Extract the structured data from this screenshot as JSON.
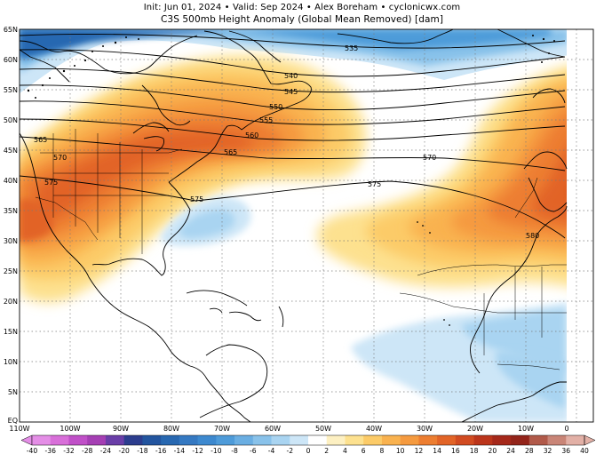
{
  "header": {
    "line1": "Init: Jun 01, 2024 • Valid: Sep 2024 • Alex Boreham • cyclonicwx.com",
    "line2": "C3S 500mb Height Anomaly (Global Mean Removed) [dam]"
  },
  "map": {
    "lat_labels": [
      "65N",
      "60N",
      "55N",
      "50N",
      "45N",
      "40N",
      "35N",
      "30N",
      "25N",
      "20N",
      "15N",
      "10N",
      "5N",
      "EQ"
    ],
    "lon_labels": [
      "110W",
      "100W",
      "90W",
      "80W",
      "70W",
      "60W",
      "50W",
      "40W",
      "30W",
      "20W",
      "10W",
      "0"
    ],
    "contour_labels": [
      "535",
      "540",
      "545",
      "550",
      "555",
      "560",
      "565",
      "570",
      "575",
      "580"
    ],
    "contour_label_instances": [
      {
        "key": "c535a",
        "text": "535"
      },
      {
        "key": "c540",
        "text": "540"
      },
      {
        "key": "c545",
        "text": "545"
      },
      {
        "key": "c550",
        "text": "550"
      },
      {
        "key": "c555",
        "text": "555"
      },
      {
        "key": "c560",
        "text": "560"
      },
      {
        "key": "c565",
        "text": "565"
      },
      {
        "key": "c565b",
        "text": "565"
      },
      {
        "key": "c570a",
        "text": "570"
      },
      {
        "key": "c570b",
        "text": "570"
      },
      {
        "key": "c575a",
        "text": "575"
      },
      {
        "key": "c575b",
        "text": "575"
      },
      {
        "key": "c575c",
        "text": "575"
      },
      {
        "key": "c580",
        "text": "580"
      }
    ],
    "grid": "dotted"
  },
  "colorbar": {
    "ticks": [
      "-40",
      "-36",
      "-32",
      "-28",
      "-24",
      "-20",
      "-18",
      "-16",
      "-14",
      "-12",
      "-10",
      "-8",
      "-6",
      "-4",
      "-2",
      "0",
      "2",
      "4",
      "6",
      "8",
      "10",
      "12",
      "14",
      "16",
      "18",
      "20",
      "24",
      "28",
      "32",
      "36",
      "40"
    ],
    "colors": [
      "#e48ee6",
      "#d86fd9",
      "#c050c8",
      "#a53fb4",
      "#6a3ea8",
      "#2c3d8e",
      "#23559f",
      "#2868b1",
      "#3579c2",
      "#3d89cf",
      "#4e9bd9",
      "#6aaee2",
      "#89c2ea",
      "#a9d4f1",
      "#cde6f7",
      "#ffffff",
      "#fdf0c2",
      "#fde18f",
      "#fccb68",
      "#f9b24f",
      "#f59a3f",
      "#ed7e31",
      "#e26427",
      "#d14b21",
      "#bb351b",
      "#a5281a",
      "#93241a",
      "#b15a4a",
      "#c98577",
      "#e2b0a6"
    ]
  }
}
